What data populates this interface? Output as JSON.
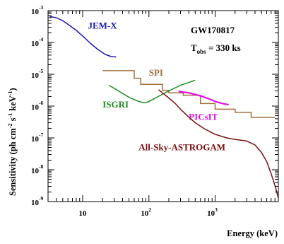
{
  "chart_data": {
    "type": "line",
    "xlabel": "Energy (keV)",
    "ylabel": {
      "base": "Sensitivity (ph cm",
      "e1": "-2",
      "mid1": " s",
      "e2": "-1",
      "mid2": " keV",
      "e3": "-1",
      "end": ")"
    },
    "x_scale": "log",
    "y_scale": "log",
    "xlim": [
      3,
      9000
    ],
    "ylim": [
      1e-09,
      0.001
    ],
    "grid": false,
    "x_ticks": [
      {
        "value": 10,
        "base": "10",
        "exp": ""
      },
      {
        "value": 100,
        "base": "10",
        "exp": "2"
      },
      {
        "value": 1000,
        "base": "10",
        "exp": "3"
      }
    ],
    "y_ticks": [
      {
        "value": 0.001,
        "base": "10",
        "exp": "-3"
      },
      {
        "value": 0.0001,
        "base": "10",
        "exp": "-4"
      },
      {
        "value": 1e-05,
        "base": "10",
        "exp": "-5"
      },
      {
        "value": 1e-06,
        "base": "10",
        "exp": "-6"
      },
      {
        "value": 1e-07,
        "base": "10",
        "exp": "-7"
      },
      {
        "value": 1e-08,
        "base": "10",
        "exp": "-8"
      },
      {
        "value": 1e-09,
        "base": "10",
        "exp": "-9"
      }
    ],
    "annotations": {
      "event": "GW170817",
      "tobs_prefix": "T",
      "tobs_sub": "obs",
      "tobs_value": " = 330 ks"
    },
    "series": [
      {
        "name": "JEM-X",
        "color": "#1a1aa6",
        "label_at": [
          12,
          0.00027
        ],
        "x": [
          3.2,
          4,
          5,
          6,
          8,
          10,
          13,
          17,
          22,
          27,
          32
        ],
        "y": [
          0.00065,
          0.0006,
          0.00048,
          0.00037,
          0.00024,
          0.00016,
          9.5e-05,
          6e-05,
          4.2e-05,
          3.6e-05,
          3.5e-05
        ]
      },
      {
        "name": "SPI",
        "color": "#a0703a",
        "step": true,
        "label_at": [
          100,
          9e-06
        ],
        "x": [
          20,
          60,
          60,
          75,
          75,
          160,
          160,
          200,
          200,
          330,
          330,
          600,
          600,
          1000,
          1000,
          2000,
          2000,
          3500,
          3500,
          8000
        ],
        "y": [
          1.3e-05,
          1.3e-05,
          7.5e-06,
          7.5e-06,
          4.8e-06,
          4.8e-06,
          3.1e-06,
          3.1e-06,
          2.6e-06,
          2.6e-06,
          2.2e-06,
          2.2e-06,
          1.2e-06,
          1.2e-06,
          8e-07,
          8e-07,
          6.4e-07,
          6.4e-07,
          4.4e-07,
          4.4e-07
        ]
      },
      {
        "name": "ISGRI",
        "color": "#1e8a1e",
        "label_at": [
          20,
          9e-07
        ],
        "x": [
          25,
          30,
          40,
          50,
          60,
          70,
          80,
          90,
          100,
          120,
          150,
          200,
          300,
          400,
          500
        ],
        "y": [
          4.5e-06,
          3.6e-06,
          2.5e-06,
          1.9e-06,
          1.6e-06,
          1.4e-06,
          1.3e-06,
          1.3e-06,
          1.4e-06,
          1.7e-06,
          2.2e-06,
          3e-06,
          4.5e-06,
          5.5e-06,
          6.5e-06
        ]
      },
      {
        "name": "PICsIT",
        "color": "#e010e0",
        "label_at": [
          400,
          3.7e-07
        ],
        "x": [
          280,
          400,
          600,
          800,
          1000,
          1300,
          1600
        ],
        "y": [
          2.9e-06,
          2.6e-06,
          2.1e-06,
          1.7e-06,
          1.4e-06,
          1.2e-06,
          1.1e-06
        ]
      },
      {
        "name": "All-Sky-ASTROGAM",
        "color": "#7a1010",
        "label_at": [
          70,
          4.1e-08
        ],
        "x": [
          140,
          160,
          200,
          250,
          300,
          400,
          500,
          700,
          1000,
          1500,
          2000,
          3000,
          4000,
          5000,
          6000,
          7000,
          8000,
          9000
        ],
        "y": [
          3.3e-06,
          2.6e-06,
          1.8e-06,
          1.2e-06,
          8e-07,
          4.5e-07,
          3e-07,
          1.9e-07,
          1.3e-07,
          1e-07,
          9e-08,
          8e-08,
          6e-08,
          3.5e-08,
          1.8e-08,
          7.5e-09,
          3.2e-09,
          1.3e-09
        ]
      }
    ]
  }
}
